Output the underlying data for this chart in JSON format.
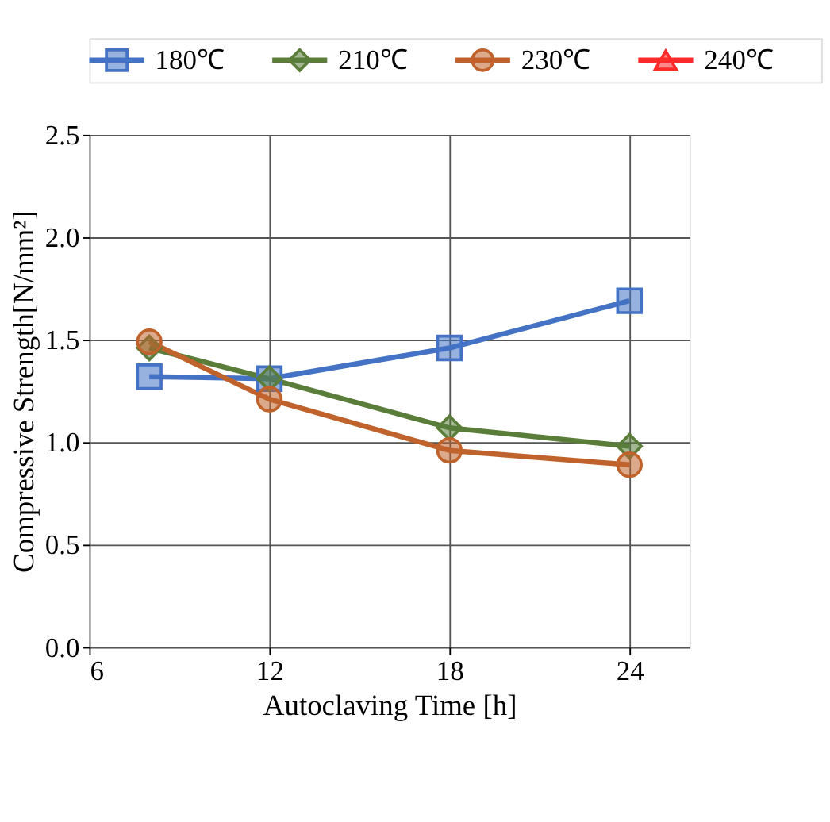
{
  "chart_data": {
    "type": "line",
    "xlabel": "Autoclaving Time [h]",
    "ylabel": "Compressive Strength[N/mm²]",
    "x": [
      8,
      12,
      18,
      24
    ],
    "xlim": [
      6,
      26
    ],
    "xticks": [
      6,
      12,
      18,
      24
    ],
    "ylim": [
      0,
      2.5
    ],
    "yticks": [
      {
        "value": 0,
        "label": "0.0"
      },
      0.5,
      {
        "value": 1,
        "label": "1.0"
      },
      1.5,
      {
        "value": 2,
        "label": "2.0"
      },
      2.5
    ],
    "grid": true,
    "legend": "top",
    "line_style": "solid",
    "series": [
      {
        "name": "180℃",
        "color": "#4472c4",
        "marker": "square",
        "values": [
          1.32,
          1.31,
          1.46,
          1.69
        ]
      },
      {
        "name": "210℃",
        "color": "#5a7d3a",
        "marker": "diamond",
        "values": [
          1.46,
          1.31,
          1.07,
          0.98
        ]
      },
      {
        "name": "230℃",
        "color": "#c0622b",
        "marker": "circle",
        "values": [
          1.49,
          1.21,
          0.96,
          0.89
        ]
      },
      {
        "name": "240℃",
        "color": "#ff2a2a",
        "marker": "triangle",
        "values": [
          null,
          null,
          null,
          null
        ]
      }
    ]
  }
}
